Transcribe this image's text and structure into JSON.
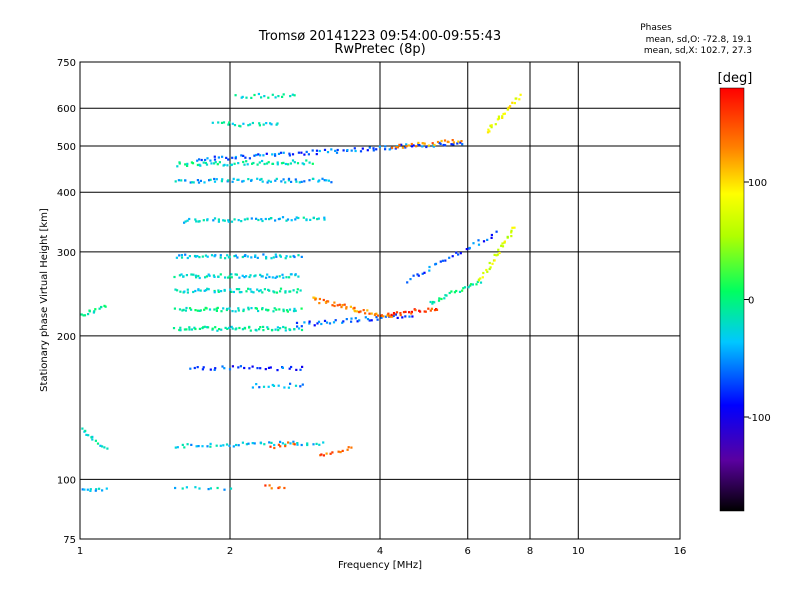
{
  "chart_data": {
    "type": "scatter",
    "title": "Tromsø 20141223 09:54:00-09:55:43",
    "subtitle": "RwPretec (8p)",
    "xlabel": "Frequency [MHz]",
    "ylabel": "Stationary phase Virtual Height [km]",
    "x_scale": "log",
    "y_scale": "log",
    "xlim": [
      1,
      16
    ],
    "ylim": [
      75,
      750
    ],
    "x_ticks": [
      1,
      2,
      4,
      6,
      8,
      10,
      16
    ],
    "x_tick_labels": [
      "1",
      "2",
      "4",
      "6",
      "8",
      "10",
      "16"
    ],
    "y_ticks": [
      75,
      100,
      200,
      300,
      400,
      500,
      600,
      750
    ],
    "y_tick_labels": [
      "75",
      "100",
      "200",
      "300",
      "400",
      "500",
      "600",
      "750"
    ],
    "grid": true,
    "stats": {
      "header": "Phases",
      "line_o": "mean, sd,O: -72.8, 19.1",
      "line_x": "mean, sd,X: 102.7, 27.3"
    },
    "colorbar": {
      "label": "[deg]",
      "range": [
        -180,
        180
      ],
      "ticks": [
        100,
        0,
        -100
      ],
      "tick_labels": [
        "100",
        "0",
        "-100"
      ]
    },
    "traces": [
      {
        "f0": 1.0,
        "f1": 1.12,
        "h0": 222,
        "h1": 232,
        "phase": -20,
        "n": 14
      },
      {
        "f0": 1.0,
        "f1": 1.12,
        "h0": 128,
        "h1": 116,
        "phase": -30,
        "n": 14
      },
      {
        "f0": 1.0,
        "f1": 1.12,
        "h0": 96,
        "h1": 96,
        "phase": -45,
        "n": 10
      },
      {
        "f0": 1.55,
        "f1": 2.75,
        "h0": 208,
        "h1": 208,
        "phase": -25,
        "n": 60
      },
      {
        "f0": 1.55,
        "f1": 2.75,
        "h0": 228,
        "h1": 228,
        "phase": -20,
        "n": 55
      },
      {
        "f0": 1.55,
        "f1": 2.75,
        "h0": 250,
        "h1": 250,
        "phase": -30,
        "n": 55
      },
      {
        "f0": 1.55,
        "f1": 2.75,
        "h0": 268,
        "h1": 268,
        "phase": -35,
        "n": 55
      },
      {
        "f0": 1.55,
        "f1": 2.75,
        "h0": 295,
        "h1": 295,
        "phase": -45,
        "n": 50
      },
      {
        "f0": 1.6,
        "f1": 3.1,
        "h0": 350,
        "h1": 355,
        "phase": -40,
        "n": 55
      },
      {
        "f0": 1.55,
        "f1": 3.2,
        "h0": 425,
        "h1": 425,
        "phase": -50,
        "n": 60
      },
      {
        "f0": 1.55,
        "f1": 2.9,
        "h0": 460,
        "h1": 465,
        "phase": -25,
        "n": 55
      },
      {
        "f0": 1.7,
        "f1": 5.8,
        "h0": 470,
        "h1": 510,
        "phase": -75,
        "n": 90
      },
      {
        "f0": 1.85,
        "f1": 2.5,
        "h0": 558,
        "h1": 558,
        "phase": -30,
        "n": 22
      },
      {
        "f0": 2.05,
        "f1": 2.7,
        "h0": 640,
        "h1": 640,
        "phase": -28,
        "n": 18
      },
      {
        "f0": 1.65,
        "f1": 2.8,
        "h0": 172,
        "h1": 172,
        "phase": -85,
        "n": 30
      },
      {
        "f0": 1.55,
        "f1": 3.05,
        "h0": 118,
        "h1": 120,
        "phase": -45,
        "n": 45
      },
      {
        "f0": 1.55,
        "f1": 2.0,
        "h0": 96,
        "h1": 96,
        "phase": -40,
        "n": 10
      },
      {
        "f0": 2.2,
        "f1": 2.8,
        "h0": 158,
        "h1": 158,
        "phase": -60,
        "n": 14
      },
      {
        "f0": 2.7,
        "f1": 4.6,
        "h0": 212,
        "h1": 222,
        "phase": -80,
        "n": 40
      },
      {
        "f0": 2.9,
        "f1": 4.2,
        "h0": 240,
        "h1": 220,
        "phase": 130,
        "n": 45
      },
      {
        "f0": 4.1,
        "f1": 5.2,
        "h0": 222,
        "h1": 230,
        "phase": 155,
        "n": 25
      },
      {
        "f0": 5.0,
        "f1": 6.3,
        "h0": 235,
        "h1": 262,
        "phase": -10,
        "n": 25
      },
      {
        "f0": 6.3,
        "f1": 7.4,
        "h0": 262,
        "h1": 340,
        "phase": 70,
        "n": 30
      },
      {
        "f0": 4.5,
        "f1": 6.8,
        "h0": 262,
        "h1": 330,
        "phase": -80,
        "n": 30
      },
      {
        "f0": 6.5,
        "f1": 7.6,
        "h0": 540,
        "h1": 640,
        "phase": 85,
        "n": 25
      },
      {
        "f0": 4.2,
        "f1": 5.8,
        "h0": 500,
        "h1": 515,
        "phase": 130,
        "n": 25
      },
      {
        "f0": 3.0,
        "f1": 3.5,
        "h0": 112,
        "h1": 118,
        "phase": 140,
        "n": 12
      },
      {
        "f0": 2.4,
        "f1": 2.7,
        "h0": 117,
        "h1": 120,
        "phase": 140,
        "n": 8
      },
      {
        "f0": 2.35,
        "f1": 2.55,
        "h0": 97,
        "h1": 96,
        "phase": 150,
        "n": 6
      }
    ]
  }
}
